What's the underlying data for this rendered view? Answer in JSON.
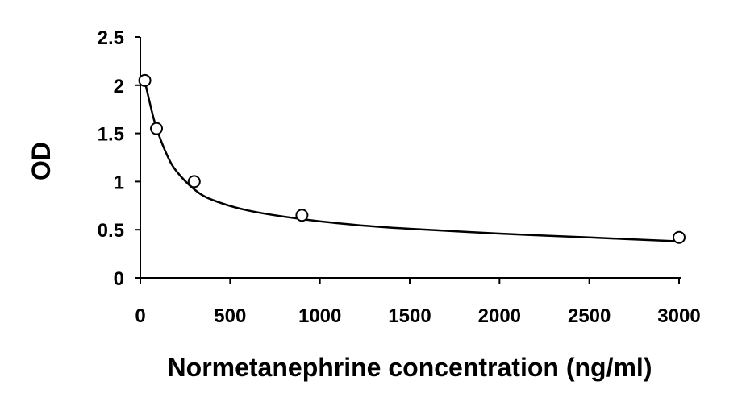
{
  "chart_data": {
    "type": "scatter",
    "title": "",
    "xlabel": "Normetanephrine concentration (ng/ml)",
    "ylabel": "OD",
    "xlim": [
      0,
      3000
    ],
    "ylim": [
      0,
      2.5
    ],
    "xticks": [
      0,
      500,
      1000,
      1500,
      2000,
      2500,
      3000
    ],
    "xtick_labels": [
      "0",
      "500",
      "1000",
      "1500",
      "2000",
      "2500",
      "3000"
    ],
    "yticks": [
      0,
      0.5,
      1,
      1.5,
      2,
      2.5
    ],
    "ytick_labels": [
      "0",
      "0.5",
      "1",
      "1.5",
      "2",
      "2.5"
    ],
    "grid": false,
    "legend": "none",
    "series": [
      {
        "marker": "open-circle",
        "x": [
          25,
          90,
          300,
          900,
          3000
        ],
        "y": [
          2.05,
          1.55,
          1.0,
          0.65,
          0.42
        ]
      }
    ],
    "fit_curve": {
      "style": "smooth-line",
      "x": [
        25,
        50,
        75,
        100,
        150,
        200,
        300,
        400,
        600,
        900,
        1200,
        1500,
        2000,
        2500,
        3000
      ],
      "y": [
        2.04,
        1.84,
        1.65,
        1.5,
        1.27,
        1.11,
        0.92,
        0.81,
        0.7,
        0.61,
        0.55,
        0.51,
        0.46,
        0.42,
        0.38
      ]
    }
  }
}
